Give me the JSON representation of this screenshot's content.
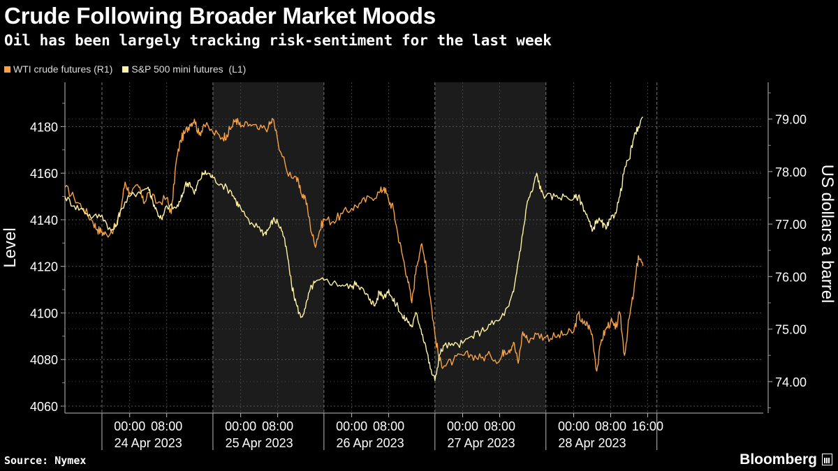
{
  "header": {
    "title": "Crude Following Broader Market Moods",
    "subtitle": "Oil has been largely tracking risk-sentiment for the last week"
  },
  "legend": [
    {
      "label": "WTI crude futures (R1)",
      "color": "#f7a248"
    },
    {
      "label": "S&P 500 mini futures  (L1)",
      "color": "#fff3a0"
    }
  ],
  "footer": {
    "source": "Source: Nymex",
    "brand": "Bloomberg"
  },
  "chart_data": {
    "type": "line",
    "left_axis": {
      "label": "Level",
      "ticks": [
        "4180",
        "4160",
        "4140",
        "4120",
        "4100",
        "4080",
        "4060"
      ],
      "range": [
        4057,
        4199
      ]
    },
    "right_axis": {
      "label": "US dollars a barrel",
      "ticks": [
        "79.00",
        "78.00",
        "77.00",
        "76.00",
        "75.00",
        "74.00"
      ],
      "range": [
        73.4,
        79.7
      ]
    },
    "x_axis": {
      "range_hours": [
        -14,
        137
      ],
      "time_ticks": [
        {
          "h": 0,
          "label": "00:00"
        },
        {
          "h": 8,
          "label": "08:00"
        },
        {
          "h": 24,
          "label": "00:00"
        },
        {
          "h": 32,
          "label": "08:00"
        },
        {
          "h": 48,
          "label": "00:00"
        },
        {
          "h": 56,
          "label": "08:00"
        },
        {
          "h": 72,
          "label": "00:00"
        },
        {
          "h": 80,
          "label": "08:00"
        },
        {
          "h": 96,
          "label": "00:00"
        },
        {
          "h": 104,
          "label": "08:00"
        },
        {
          "h": 112,
          "label": "16:00"
        }
      ],
      "date_labels": [
        {
          "h": 4,
          "label": "24 Apr 2023"
        },
        {
          "h": 28,
          "label": "25 Apr 2023"
        },
        {
          "h": 52,
          "label": "26 Apr 2023"
        },
        {
          "h": 76,
          "label": "27 Apr 2023"
        },
        {
          "h": 100,
          "label": "28 Apr 2023"
        }
      ],
      "day_separators_h": [
        -6,
        18,
        42,
        66,
        90,
        114
      ],
      "shaded_ranges_h": [
        [
          18,
          42
        ],
        [
          66,
          90
        ]
      ]
    },
    "series": [
      {
        "name": "WTI crude futures (R1)",
        "axis": "right",
        "color": "#f7a248",
        "points": [
          [
            -14,
            77.7
          ],
          [
            -12,
            77.5
          ],
          [
            -10,
            77.3
          ],
          [
            -8,
            77.05
          ],
          [
            -7,
            76.9
          ],
          [
            -6,
            76.85
          ],
          [
            -5,
            76.8
          ],
          [
            -3,
            76.95
          ],
          [
            -2,
            77.25
          ],
          [
            -1,
            77.8
          ],
          [
            0,
            77.6
          ],
          [
            2,
            77.7
          ],
          [
            3,
            77.4
          ],
          [
            4,
            77.6
          ],
          [
            6,
            77.4
          ],
          [
            8,
            77.5
          ],
          [
            9,
            77.2
          ],
          [
            10,
            78.15
          ],
          [
            11,
            78.6
          ],
          [
            12,
            78.75
          ],
          [
            13,
            78.9
          ],
          [
            14,
            79.0
          ],
          [
            15,
            78.7
          ],
          [
            16,
            78.9
          ],
          [
            18,
            78.75
          ],
          [
            20,
            78.65
          ],
          [
            21,
            78.7
          ],
          [
            22,
            78.85
          ],
          [
            23,
            79.0
          ],
          [
            24,
            78.85
          ],
          [
            26,
            78.9
          ],
          [
            28,
            78.8
          ],
          [
            30,
            78.85
          ],
          [
            31,
            79.0
          ],
          [
            32,
            78.6
          ],
          [
            34,
            78.0
          ],
          [
            36,
            77.9
          ],
          [
            37,
            77.6
          ],
          [
            38,
            77.5
          ],
          [
            39,
            77.0
          ],
          [
            40,
            76.6
          ],
          [
            41,
            76.85
          ],
          [
            42,
            77.1
          ],
          [
            44,
            77.05
          ],
          [
            46,
            77.2
          ],
          [
            48,
            77.3
          ],
          [
            50,
            77.4
          ],
          [
            52,
            77.5
          ],
          [
            54,
            77.6
          ],
          [
            55,
            77.7
          ],
          [
            56,
            77.45
          ],
          [
            57,
            77.3
          ],
          [
            58,
            76.8
          ],
          [
            59,
            76.4
          ],
          [
            60,
            76.0
          ],
          [
            61,
            75.5
          ],
          [
            62,
            76.2
          ],
          [
            63,
            76.6
          ],
          [
            64,
            76.3
          ],
          [
            65,
            75.6
          ],
          [
            66,
            74.9
          ],
          [
            67,
            74.4
          ],
          [
            68,
            74.3
          ],
          [
            70,
            74.4
          ],
          [
            72,
            74.5
          ],
          [
            74,
            74.5
          ],
          [
            76,
            74.45
          ],
          [
            78,
            74.5
          ],
          [
            80,
            74.4
          ],
          [
            81,
            74.6
          ],
          [
            82,
            74.6
          ],
          [
            83,
            74.75
          ],
          [
            84,
            74.35
          ],
          [
            85,
            74.95
          ],
          [
            86,
            74.8
          ],
          [
            88,
            74.9
          ],
          [
            90,
            74.85
          ],
          [
            92,
            74.85
          ],
          [
            94,
            74.9
          ],
          [
            96,
            74.95
          ],
          [
            97,
            75.3
          ],
          [
            98,
            75.1
          ],
          [
            99,
            75.1
          ],
          [
            100,
            74.9
          ],
          [
            101,
            74.2
          ],
          [
            102,
            74.8
          ],
          [
            103,
            75.0
          ],
          [
            104,
            75.15
          ],
          [
            105,
            75.0
          ],
          [
            106,
            75.3
          ],
          [
            107,
            74.5
          ],
          [
            108,
            75.2
          ],
          [
            109,
            75.7
          ],
          [
            110,
            76.4
          ],
          [
            111,
            76.2
          ]
        ]
      },
      {
        "name": "S&P 500 mini futures (L1)",
        "axis": "left",
        "color": "#fff3a0",
        "points": [
          [
            -14,
            4150
          ],
          [
            -12,
            4146
          ],
          [
            -10,
            4144
          ],
          [
            -8,
            4141
          ],
          [
            -6,
            4142
          ],
          [
            -4,
            4135
          ],
          [
            -3,
            4137
          ],
          [
            -2,
            4144
          ],
          [
            0,
            4150
          ],
          [
            2,
            4152
          ],
          [
            4,
            4154
          ],
          [
            5,
            4148
          ],
          [
            6,
            4143
          ],
          [
            7,
            4140
          ],
          [
            8,
            4146
          ],
          [
            10,
            4145
          ],
          [
            11,
            4148
          ],
          [
            12,
            4155
          ],
          [
            13,
            4156
          ],
          [
            14,
            4151
          ],
          [
            15,
            4157
          ],
          [
            16,
            4160
          ],
          [
            17,
            4160
          ],
          [
            18,
            4158
          ],
          [
            20,
            4155
          ],
          [
            22,
            4152
          ],
          [
            23,
            4148
          ],
          [
            24,
            4145
          ],
          [
            26,
            4138
          ],
          [
            28,
            4137
          ],
          [
            29,
            4134
          ],
          [
            30,
            4136
          ],
          [
            31,
            4140
          ],
          [
            32,
            4139
          ],
          [
            33,
            4135
          ],
          [
            34,
            4126
          ],
          [
            35,
            4112
          ],
          [
            36,
            4104
          ],
          [
            37,
            4098
          ],
          [
            38,
            4102
          ],
          [
            39,
            4110
          ],
          [
            40,
            4113
          ],
          [
            42,
            4114
          ],
          [
            44,
            4113
          ],
          [
            46,
            4112
          ],
          [
            48,
            4111
          ],
          [
            49,
            4113
          ],
          [
            50,
            4111
          ],
          [
            51,
            4108
          ],
          [
            52,
            4106
          ],
          [
            53,
            4103
          ],
          [
            54,
            4109
          ],
          [
            55,
            4107
          ],
          [
            56,
            4110
          ],
          [
            57,
            4105
          ],
          [
            58,
            4103
          ],
          [
            59,
            4098
          ],
          [
            60,
            4097
          ],
          [
            61,
            4094
          ],
          [
            62,
            4100
          ],
          [
            63,
            4093
          ],
          [
            64,
            4086
          ],
          [
            65,
            4076
          ],
          [
            66,
            4071
          ],
          [
            67,
            4082
          ],
          [
            68,
            4086
          ],
          [
            70,
            4086
          ],
          [
            72,
            4087
          ],
          [
            74,
            4090
          ],
          [
            76,
            4092
          ],
          [
            78,
            4095
          ],
          [
            80,
            4097
          ],
          [
            82,
            4103
          ],
          [
            83,
            4109
          ],
          [
            84,
            4122
          ],
          [
            85,
            4134
          ],
          [
            86,
            4148
          ],
          [
            87,
            4152
          ],
          [
            88,
            4160
          ],
          [
            89,
            4152
          ],
          [
            90,
            4150
          ],
          [
            92,
            4150
          ],
          [
            94,
            4150
          ],
          [
            96,
            4149
          ],
          [
            97,
            4150
          ],
          [
            98,
            4146
          ],
          [
            99,
            4141
          ],
          [
            100,
            4135
          ],
          [
            101,
            4140
          ],
          [
            102,
            4139
          ],
          [
            103,
            4136
          ],
          [
            104,
            4140
          ],
          [
            105,
            4143
          ],
          [
            106,
            4150
          ],
          [
            107,
            4162
          ],
          [
            108,
            4166
          ],
          [
            109,
            4175
          ],
          [
            110,
            4180
          ],
          [
            111,
            4184
          ]
        ]
      }
    ]
  }
}
